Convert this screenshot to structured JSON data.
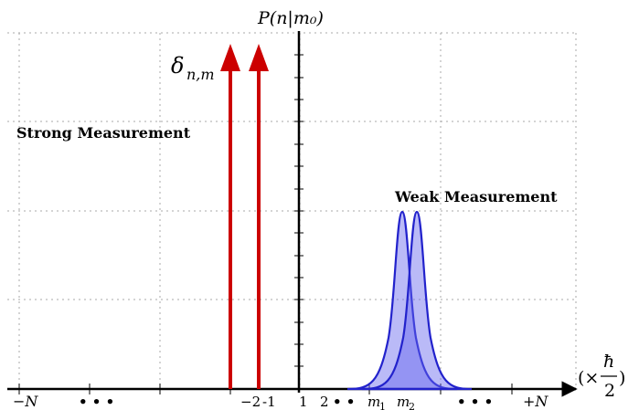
{
  "title": "P(n|m₀)",
  "labels": {
    "strong": "Strong Measurement",
    "weak": "Weak Measurement",
    "delta": "δ",
    "delta_sub": "n,m",
    "xunit_prefix": "(×",
    "xunit_num": "ħ",
    "xunit_den": "2",
    "xunit_suffix": ")"
  },
  "ticks": {
    "neg_n": "−N",
    "neg_dots": "• • •",
    "neg2": "−2",
    "neg1": "-1",
    "one": "1",
    "two": "2",
    "mid_dots": "• •",
    "m1": "m",
    "m1_sub": "1",
    "m2": "m",
    "m2_sub": "2",
    "pos_dots": "• • •",
    "pos_n": "+N"
  },
  "colors": {
    "delta_arrows": "#cc0000",
    "gaussian_stroke": "#2222cc",
    "gaussian_fill": "#6666ee",
    "axis": "#000000",
    "grid": "#aaaaaa"
  }
}
